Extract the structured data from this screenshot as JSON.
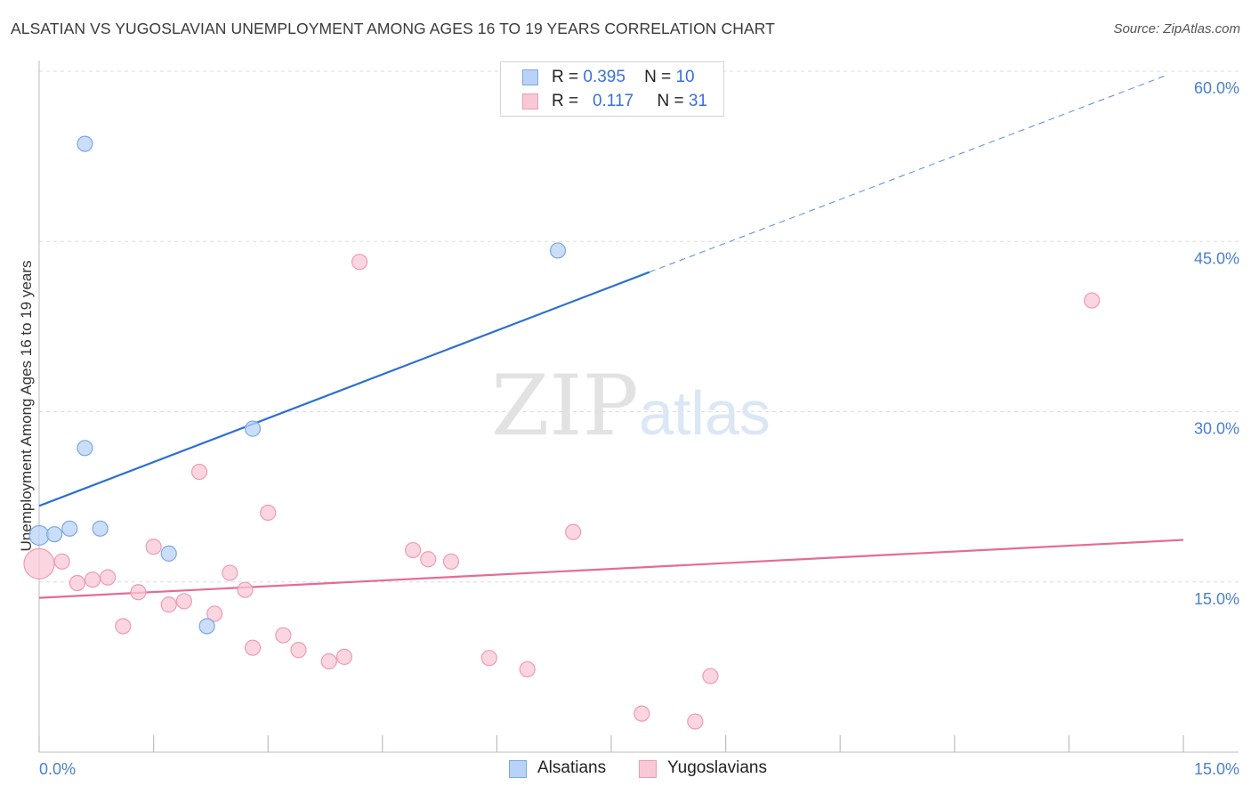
{
  "header": {
    "title": "ALSATIAN VS YUGOSLAVIAN UNEMPLOYMENT AMONG AGES 16 TO 19 YEARS CORRELATION CHART",
    "source": "Source: ZipAtlas.com"
  },
  "watermark": {
    "zip": "ZIP",
    "atlas": "atlas"
  },
  "stats": [
    {
      "r_label": "R =",
      "r_value": "0.395",
      "n_label": "N =",
      "n_value": "10"
    },
    {
      "r_label": "R =",
      "r_value": "0.117",
      "n_label": "N =",
      "n_value": "31"
    }
  ],
  "legend": {
    "alsatians": "Alsatians",
    "yugoslavians": "Yugoslavians"
  },
  "colors": {
    "alsatians_fill": "#b9d3f7",
    "alsatians_stroke": "#7ba6e6",
    "alsatians_line": "#2d6fd1",
    "yugoslavians_fill": "#f9c8d7",
    "yugoslavians_stroke": "#ef9ab4",
    "yugoslavians_line": "#e56b95",
    "tick_label": "#4a7fd4",
    "grid": "#dcdcdc"
  },
  "chart_data": {
    "type": "scatter",
    "title": "ALSATIAN VS YUGOSLAVIAN UNEMPLOYMENT AMONG AGES 16 TO 19 YEARS CORRELATION CHART",
    "xlabel": "",
    "ylabel": "Unemployment Among Ages 16 to 19 years",
    "xlim": [
      0,
      15
    ],
    "ylim": [
      0,
      60
    ],
    "x_tick_labels": [
      "0.0%",
      "15.0%"
    ],
    "y_ticks": [
      15,
      30,
      45,
      60
    ],
    "y_tick_labels": [
      "15.0%",
      "30.0%",
      "45.0%",
      "60.0%"
    ],
    "grid": true,
    "legend_position": "bottom-center",
    "series": [
      {
        "name": "Alsatians",
        "points": [
          [
            0.0,
            19.1
          ],
          [
            0.2,
            19.2
          ],
          [
            0.4,
            19.7
          ],
          [
            0.6,
            53.6
          ],
          [
            0.6,
            26.8
          ],
          [
            0.8,
            19.7
          ],
          [
            1.7,
            17.5
          ],
          [
            2.2,
            11.1
          ],
          [
            2.8,
            28.5
          ],
          [
            6.8,
            44.2
          ]
        ],
        "trend": {
          "x_start": 0.0,
          "y_start": 21.7,
          "x_solid_end": 8.0,
          "y_solid_end": 42.3,
          "x_end": 14.8,
          "y_end": 59.7
        }
      },
      {
        "name": "Yugoslavians",
        "points": [
          [
            0.0,
            16.6
          ],
          [
            0.3,
            16.8
          ],
          [
            0.5,
            14.9
          ],
          [
            0.7,
            15.2
          ],
          [
            0.9,
            15.4
          ],
          [
            1.1,
            11.1
          ],
          [
            1.3,
            14.1
          ],
          [
            1.5,
            18.1
          ],
          [
            1.7,
            13.0
          ],
          [
            1.9,
            13.3
          ],
          [
            2.1,
            24.7
          ],
          [
            2.3,
            12.2
          ],
          [
            2.5,
            15.8
          ],
          [
            2.7,
            14.3
          ],
          [
            2.8,
            9.2
          ],
          [
            3.0,
            21.1
          ],
          [
            3.2,
            10.3
          ],
          [
            3.4,
            9.0
          ],
          [
            3.8,
            8.0
          ],
          [
            4.0,
            8.4
          ],
          [
            4.2,
            43.2
          ],
          [
            4.9,
            17.8
          ],
          [
            5.1,
            17.0
          ],
          [
            5.4,
            16.8
          ],
          [
            5.9,
            8.3
          ],
          [
            6.4,
            7.3
          ],
          [
            7.0,
            19.4
          ],
          [
            7.9,
            3.4
          ],
          [
            8.6,
            2.7
          ],
          [
            8.8,
            6.7
          ],
          [
            13.8,
            39.8
          ]
        ],
        "trend": {
          "x_start": 0.0,
          "y_start": 13.6,
          "x_end": 15.0,
          "y_end": 18.7
        }
      }
    ]
  }
}
